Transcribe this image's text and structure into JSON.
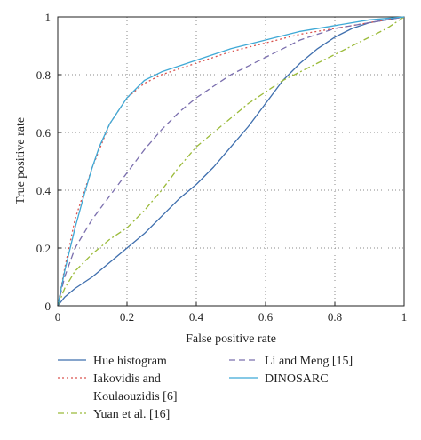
{
  "chart_data": {
    "type": "line",
    "title": "",
    "xlabel": "False positive rate",
    "ylabel": "True positive rate",
    "xlim": [
      0,
      1
    ],
    "ylim": [
      0,
      1
    ],
    "xticks": [
      "0",
      "0.2",
      "0.4",
      "0.6",
      "0.8",
      "1"
    ],
    "yticks": [
      "0",
      "0.2",
      "0.4",
      "0.6",
      "0.8",
      "1"
    ],
    "grid": true,
    "legend_position": "bottom",
    "series": [
      {
        "name": "Hue histogram",
        "color": "#3f6fae",
        "dash": "solid",
        "x": [
          0,
          0.02,
          0.05,
          0.1,
          0.15,
          0.2,
          0.25,
          0.3,
          0.35,
          0.4,
          0.45,
          0.5,
          0.55,
          0.6,
          0.65,
          0.7,
          0.75,
          0.8,
          0.85,
          0.9,
          0.95,
          1.0
        ],
        "y": [
          0,
          0.03,
          0.06,
          0.1,
          0.15,
          0.2,
          0.25,
          0.31,
          0.37,
          0.42,
          0.48,
          0.55,
          0.62,
          0.7,
          0.78,
          0.84,
          0.89,
          0.93,
          0.96,
          0.98,
          0.99,
          1.0
        ]
      },
      {
        "name": "Iakovidis and Koulaouzidis [6]",
        "color": "#d9534f",
        "dash": "dot",
        "x": [
          0,
          0.02,
          0.05,
          0.1,
          0.15,
          0.2,
          0.25,
          0.3,
          0.4,
          0.5,
          0.6,
          0.7,
          0.8,
          0.9,
          1.0
        ],
        "y": [
          0,
          0.13,
          0.3,
          0.48,
          0.63,
          0.72,
          0.77,
          0.8,
          0.84,
          0.88,
          0.91,
          0.94,
          0.96,
          0.98,
          1.0
        ]
      },
      {
        "name": "Yuan et al. [16]",
        "color": "#9bbb3a",
        "dash": "dashdot",
        "x": [
          0,
          0.02,
          0.05,
          0.1,
          0.15,
          0.2,
          0.25,
          0.3,
          0.35,
          0.4,
          0.45,
          0.5,
          0.55,
          0.6,
          0.65,
          0.7,
          0.75,
          0.8,
          0.85,
          0.9,
          0.95,
          1.0
        ],
        "y": [
          0,
          0.06,
          0.12,
          0.18,
          0.23,
          0.27,
          0.33,
          0.4,
          0.48,
          0.55,
          0.6,
          0.65,
          0.7,
          0.74,
          0.78,
          0.81,
          0.84,
          0.87,
          0.9,
          0.93,
          0.96,
          1.0
        ]
      },
      {
        "name": "Li and Meng [15]",
        "color": "#7b6fae",
        "dash": "dash",
        "x": [
          0,
          0.02,
          0.05,
          0.1,
          0.15,
          0.2,
          0.25,
          0.3,
          0.35,
          0.4,
          0.45,
          0.5,
          0.55,
          0.6,
          0.65,
          0.7,
          0.75,
          0.8,
          0.85,
          0.9,
          0.95,
          1.0
        ],
        "y": [
          0,
          0.1,
          0.2,
          0.3,
          0.38,
          0.46,
          0.54,
          0.61,
          0.67,
          0.72,
          0.76,
          0.8,
          0.83,
          0.86,
          0.89,
          0.92,
          0.94,
          0.96,
          0.97,
          0.98,
          0.99,
          1.0
        ]
      },
      {
        "name": "DINOSARC",
        "color": "#3fa9d6",
        "dash": "solid",
        "x": [
          0,
          0.02,
          0.05,
          0.08,
          0.1,
          0.12,
          0.15,
          0.2,
          0.25,
          0.3,
          0.4,
          0.5,
          0.6,
          0.7,
          0.8,
          0.9,
          1.0
        ],
        "y": [
          0,
          0.12,
          0.27,
          0.4,
          0.48,
          0.55,
          0.63,
          0.72,
          0.78,
          0.81,
          0.85,
          0.89,
          0.92,
          0.95,
          0.97,
          0.99,
          1.0
        ]
      }
    ]
  }
}
